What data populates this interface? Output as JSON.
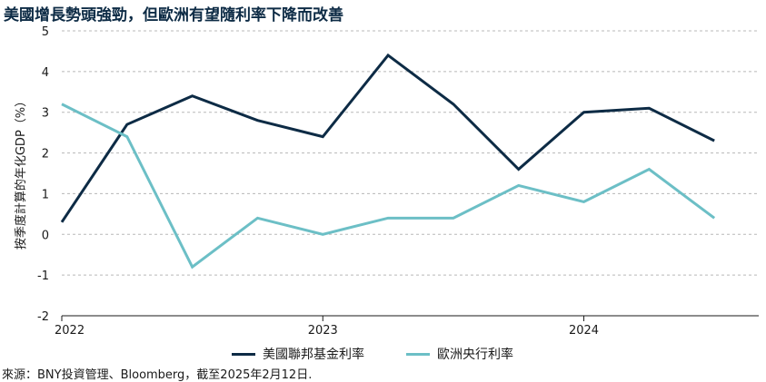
{
  "title": "美國增長勢頭強勁，但歐洲有望隨利率下降而改善",
  "source": "來源：BNY投資管理、Bloomberg，截至2025年2月12日.",
  "colors": {
    "fed": "#0d2b45",
    "ecb": "#6cbfc6",
    "grid": "#b8b8b8",
    "axis": "#1a1a1a"
  },
  "chart_data": {
    "type": "line",
    "title": "美國增長勢頭強勁，但歐洲有望隨利率下降而改善",
    "xlabel": "",
    "ylabel": "按季度計算的年化GDP（%）",
    "ylim": [
      -2,
      5
    ],
    "yticks": [
      -2,
      -1,
      0,
      1,
      2,
      3,
      4,
      5
    ],
    "xlim": [
      2022.0,
      2024.67
    ],
    "xtick_labels": [
      {
        "x": 2022,
        "label": "2022"
      },
      {
        "x": 2023,
        "label": "2023"
      },
      {
        "x": 2024,
        "label": "2024"
      }
    ],
    "grid": "horizontal dashed",
    "legend": "bottom-center",
    "x": [
      2022.0,
      2022.25,
      2022.5,
      2022.75,
      2023.0,
      2023.25,
      2023.5,
      2023.75,
      2024.0,
      2024.25,
      2024.5
    ],
    "series": [
      {
        "name": "美國聯邦基金利率",
        "color": "#0d2b45",
        "values": [
          0.3,
          2.7,
          3.4,
          2.8,
          2.4,
          4.4,
          3.2,
          1.6,
          3.0,
          3.1,
          2.3
        ]
      },
      {
        "name": "歐洲央行利率",
        "color": "#6cbfc6",
        "values": [
          3.2,
          2.4,
          -0.8,
          0.4,
          0.0,
          0.4,
          0.4,
          1.2,
          0.8,
          1.6,
          0.4
        ]
      }
    ]
  }
}
